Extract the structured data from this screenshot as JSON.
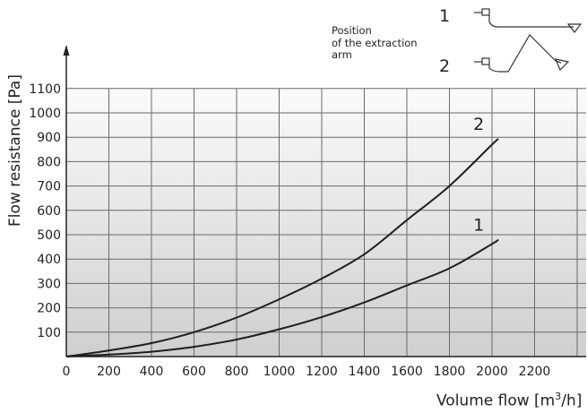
{
  "chart_data": {
    "type": "line",
    "title": "",
    "xlabel_prefix": "Volume flow [m",
    "xlabel_sup": "3",
    "xlabel_suffix": "/h]",
    "ylabel": "Flow resistance [Pa]",
    "xlim": [
      0,
      2400
    ],
    "ylim": [
      0,
      1100
    ],
    "x_ticks": [
      "0",
      "200",
      "400",
      "600",
      "800",
      "1000",
      "1200",
      "1400",
      "1600",
      "1800",
      "2000",
      "2200"
    ],
    "y_ticks": [
      "100",
      "200",
      "300",
      "400",
      "500",
      "600",
      "700",
      "800",
      "900",
      "1000",
      "1100"
    ],
    "grid": true,
    "legend_note": [
      "Position",
      "of the extraction",
      "arm"
    ],
    "series": [
      {
        "name": "1",
        "x": [
          0,
          200,
          400,
          600,
          800,
          1000,
          1200,
          1400,
          1600,
          1800,
          2000,
          2030
        ],
        "y": [
          0,
          8,
          20,
          40,
          70,
          112,
          162,
          222,
          292,
          362,
          462,
          480
        ]
      },
      {
        "name": "2",
        "x": [
          0,
          200,
          400,
          600,
          800,
          1000,
          1200,
          1400,
          1600,
          1800,
          2000,
          2030
        ],
        "y": [
          0,
          25,
          55,
          100,
          160,
          235,
          320,
          420,
          560,
          700,
          870,
          893
        ]
      }
    ]
  }
}
